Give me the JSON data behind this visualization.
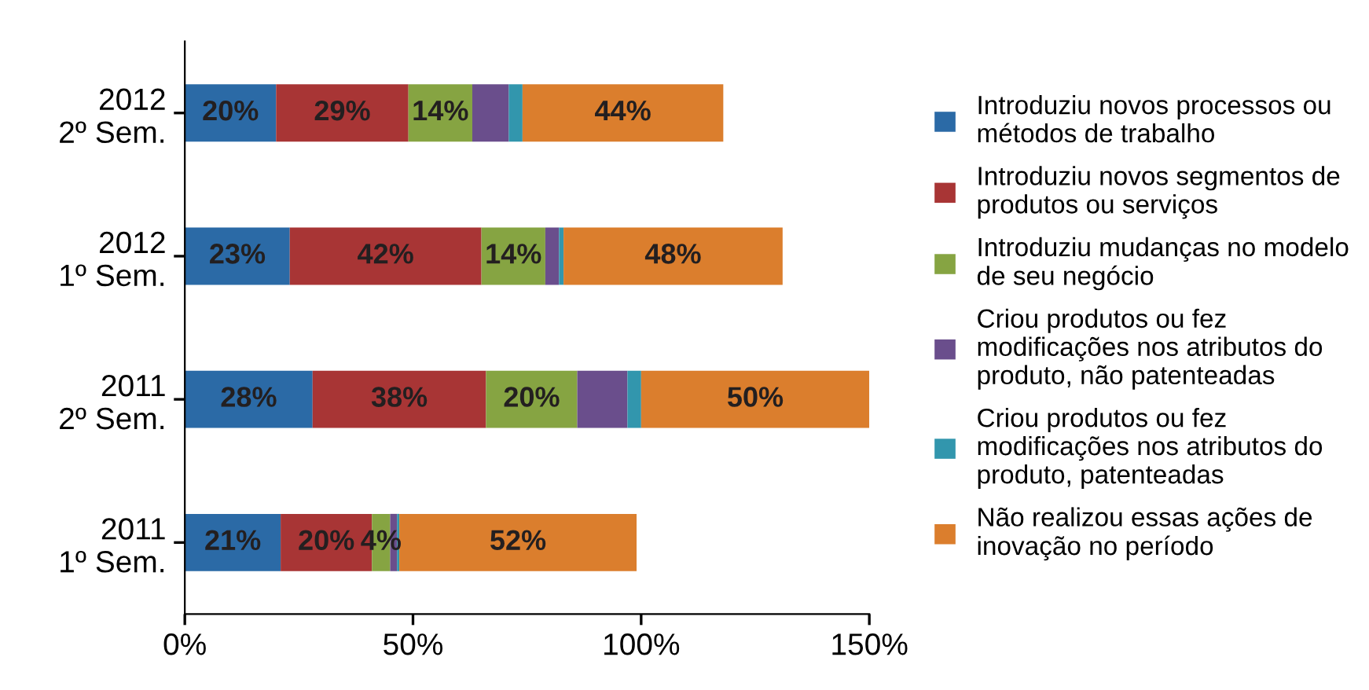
{
  "chart_data": {
    "type": "bar",
    "orientation": "horizontal",
    "stacked": true,
    "categories": [
      "2012\n2º Sem.",
      "2012\n1º Sem.",
      "2011\n2º Sem.",
      "2011\n1º Sem."
    ],
    "series": [
      {
        "name": "Introduziu novos processos ou\nmétodos de trabalho",
        "color": "#2b6aa6",
        "values": [
          20,
          23,
          28,
          21
        ],
        "value_labels": [
          "20%",
          "23%",
          "28%",
          "21%"
        ]
      },
      {
        "name": "Introduziu novos segmentos de\nprodutos ou serviços",
        "color": "#a83535",
        "values": [
          29,
          42,
          38,
          20
        ],
        "value_labels": [
          "29%",
          "42%",
          "38%",
          "20%"
        ]
      },
      {
        "name": "Introduziu mudanças no modelo\nde seu negócio",
        "color": "#86a442",
        "values": [
          14,
          14,
          20,
          4
        ],
        "value_labels": [
          "14%",
          "14%",
          "20%",
          "4%"
        ]
      },
      {
        "name": "Criou produtos ou fez\nmodificações nos atributos do\nproduto, não patenteadas",
        "color": "#6a4e8c",
        "values": [
          8,
          3,
          11,
          1.5
        ],
        "value_labels": [
          null,
          null,
          null,
          null
        ]
      },
      {
        "name": "Criou produtos ou fez\nmodificações nos atributos do\nproduto, patenteadas",
        "color": "#3296ad",
        "values": [
          3,
          1,
          3,
          0.5
        ],
        "value_labels": [
          null,
          null,
          null,
          null
        ]
      },
      {
        "name": "Não realizou essas ações de\ninovação no período",
        "color": "#db7e2d",
        "values": [
          44,
          48,
          50,
          52
        ],
        "value_labels": [
          "44%",
          "48%",
          "50%",
          "52%"
        ]
      }
    ],
    "xlim": [
      0,
      150
    ],
    "xticks": [
      {
        "value": 0,
        "label": "0%"
      },
      {
        "value": 50,
        "label": "50%"
      },
      {
        "value": 100,
        "label": "100%"
      },
      {
        "value": 150,
        "label": "150%"
      }
    ],
    "grid": false,
    "legend": "right"
  }
}
